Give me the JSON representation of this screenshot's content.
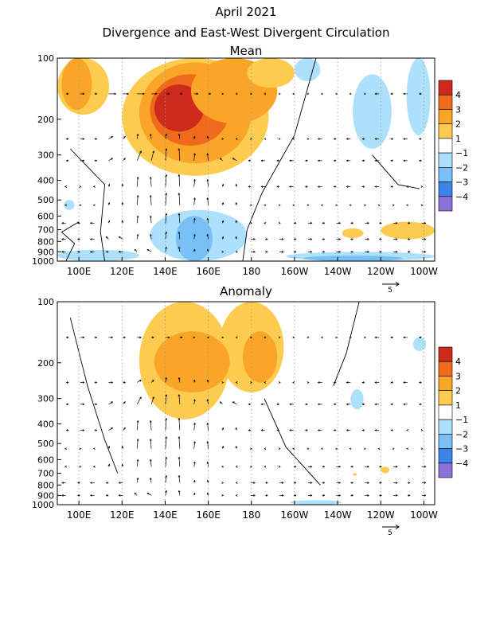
{
  "figure": {
    "title_line1": "April 2021",
    "title_line2": "Divergence and East-West Divergent Circulation"
  },
  "colors": {
    "frame": "#000000",
    "grid": "#9a9a9a",
    "contour": "#000000",
    "arrow": "#000000"
  },
  "chart_data": [
    {
      "type": "heatmap",
      "title": "Mean",
      "x_tick_labels": [
        "100E",
        "120E",
        "140E",
        "160E",
        "180",
        "160W",
        "140W",
        "120W",
        "100W"
      ],
      "x_tick_values_deg_east": [
        100,
        120,
        140,
        160,
        180,
        200,
        220,
        240,
        260
      ],
      "xlim_deg_east": [
        90,
        265
      ],
      "y_tick_labels": [
        "100",
        "200",
        "300",
        "400",
        "500",
        "600",
        "700",
        "800",
        "900",
        "1000"
      ],
      "y_tick_values_hPa": [
        100,
        200,
        300,
        400,
        500,
        600,
        700,
        800,
        900,
        1000
      ],
      "ylim_hPa": [
        100,
        1000
      ],
      "y_scale": "log (pressure)",
      "grid": "dotted vertical lines",
      "color_levels": [
        "4",
        "3",
        "2",
        "1",
        "-1",
        "-2",
        "-3",
        "-4"
      ],
      "color_scale": [
        "#cc2a1a",
        "#ef6a1a",
        "#f9a527",
        "#fdcb4f",
        "#ffffff",
        "#ade0fb",
        "#78c0f6",
        "#3c84e8",
        "#2456d6",
        "#8a72d8"
      ],
      "regions": [
        {
          "x": [
            90,
            114
          ],
          "p": [
            100,
            190
          ],
          "level": 2
        },
        {
          "x": [
            120,
            188
          ],
          "p": [
            100,
            380
          ],
          "level": 2
        },
        {
          "x": [
            128,
            180
          ],
          "p": [
            105,
            330
          ],
          "level": 3
        },
        {
          "x": [
            133,
            170
          ],
          "p": [
            120,
            270
          ],
          "level": 4
        },
        {
          "x": [
            135,
            158
          ],
          "p": [
            135,
            230
          ],
          "level": 5
        },
        {
          "x": [
            152,
            192
          ],
          "p": [
            100,
            210
          ],
          "level": 3
        },
        {
          "x": [
            178,
            200
          ],
          "p": [
            100,
            140
          ],
          "level": 2
        },
        {
          "x": [
            92,
            106
          ],
          "p": [
            100,
            180
          ],
          "level": 3
        },
        {
          "x": [
            240,
            265
          ],
          "p": [
            640,
            780
          ],
          "level": 2
        },
        {
          "x": [
            222,
            232
          ],
          "p": [
            690,
            770
          ],
          "level": 2
        },
        {
          "x": [
            227,
            245
          ],
          "p": [
            120,
            280
          ],
          "level": -1
        },
        {
          "x": [
            252,
            263
          ],
          "p": [
            100,
            240
          ],
          "level": -1
        },
        {
          "x": [
            200,
            212
          ],
          "p": [
            100,
            130
          ],
          "level": -1
        },
        {
          "x": [
            93,
            98
          ],
          "p": [
            500,
            560
          ],
          "level": -1
        },
        {
          "x": [
            133,
            178
          ],
          "p": [
            560,
            1000
          ],
          "level": -1
        },
        {
          "x": [
            145,
            162
          ],
          "p": [
            600,
            1000
          ],
          "level": -2
        },
        {
          "x": [
            90,
            128
          ],
          "p": [
            880,
            1000
          ],
          "level": -1
        },
        {
          "x": [
            196,
            265
          ],
          "p": [
            900,
            1000
          ],
          "level": -1
        },
        {
          "x": [
            204,
            250
          ],
          "p": [
            940,
            1000
          ],
          "level": -2
        }
      ],
      "contours": [
        [
          [
            210,
            100
          ],
          [
            200,
            240
          ],
          [
            185,
            460
          ],
          [
            178,
            700
          ],
          [
            176,
            1000
          ]
        ],
        [
          [
            96,
            280
          ],
          [
            112,
            420
          ],
          [
            110,
            720
          ],
          [
            112,
            1000
          ]
        ],
        [
          [
            236,
            300
          ],
          [
            248,
            420
          ],
          [
            258,
            440
          ]
        ],
        [
          [
            100,
            640
          ],
          [
            92,
            720
          ],
          [
            98,
            820
          ],
          [
            94,
            1000
          ]
        ]
      ],
      "arrow_scale": "5",
      "arrows_u": [
        [
          1,
          2,
          2,
          1,
          1,
          0,
          0,
          0,
          0,
          0,
          -1,
          -1
        ],
        [
          1,
          1,
          0,
          0,
          0,
          0,
          0,
          0,
          -1,
          -1,
          -1,
          -1
        ],
        [
          1,
          1,
          1,
          0,
          0,
          -1,
          -1,
          -1,
          -1,
          -1,
          -1,
          -1
        ],
        [
          0,
          0,
          0,
          0,
          0,
          0,
          -1,
          -1,
          -1,
          -1,
          -1,
          0
        ],
        [
          0,
          0,
          0,
          0,
          0,
          0,
          0,
          0,
          0,
          0,
          0,
          0
        ],
        [
          -1,
          0,
          0,
          0,
          0,
          0,
          0,
          1,
          1,
          1,
          1,
          1
        ],
        [
          -1,
          -1,
          0,
          0,
          0,
          0,
          1,
          1,
          1,
          1,
          1,
          1
        ],
        [
          -1,
          -1,
          -1,
          0,
          0,
          0,
          1,
          1,
          1,
          1,
          1,
          1
        ]
      ],
      "arrows_w": [
        [
          0,
          0,
          0,
          0,
          0,
          0,
          0,
          0,
          0,
          0,
          0,
          0
        ],
        [
          0,
          1,
          2,
          2,
          1,
          0,
          0,
          0,
          0,
          0,
          0,
          0
        ],
        [
          0,
          1,
          4,
          5,
          3,
          1,
          0,
          0,
          0,
          0,
          0,
          0
        ],
        [
          0,
          1,
          4,
          5,
          3,
          1,
          0,
          0,
          0,
          0,
          0,
          0
        ],
        [
          0,
          1,
          4,
          5,
          3,
          1,
          0,
          0,
          0,
          0,
          0,
          0
        ],
        [
          0,
          1,
          3,
          4,
          2,
          1,
          0,
          0,
          0,
          0,
          0,
          0
        ],
        [
          0,
          1,
          2,
          3,
          2,
          1,
          0,
          0,
          0,
          0,
          0,
          0
        ],
        [
          0,
          0,
          1,
          2,
          1,
          0,
          0,
          0,
          0,
          0,
          0,
          0
        ]
      ]
    },
    {
      "type": "heatmap",
      "title": "Anomaly",
      "x_tick_labels": [
        "100E",
        "120E",
        "140E",
        "160E",
        "180",
        "160W",
        "140W",
        "120W",
        "100W"
      ],
      "x_tick_values_deg_east": [
        100,
        120,
        140,
        160,
        180,
        200,
        220,
        240,
        260
      ],
      "xlim_deg_east": [
        90,
        265
      ],
      "y_tick_labels": [
        "100",
        "200",
        "300",
        "400",
        "500",
        "600",
        "700",
        "800",
        "900",
        "1000"
      ],
      "y_tick_values_hPa": [
        100,
        200,
        300,
        400,
        500,
        600,
        700,
        800,
        900,
        1000
      ],
      "ylim_hPa": [
        100,
        1000
      ],
      "y_scale": "log (pressure)",
      "grid": "dotted vertical lines",
      "color_levels": [
        "4",
        "3",
        "2",
        "1",
        "-1",
        "-2",
        "-3",
        "-4"
      ],
      "color_scale": [
        "#cc2a1a",
        "#ef6a1a",
        "#f9a527",
        "#fdcb4f",
        "#ffffff",
        "#ade0fb",
        "#78c0f6",
        "#3c84e8",
        "#2456d6",
        "#8a72d8"
      ],
      "regions": [
        {
          "x": [
            128,
            170
          ],
          "p": [
            100,
            380
          ],
          "level": 2
        },
        {
          "x": [
            165,
            195
          ],
          "p": [
            100,
            280
          ],
          "level": 2
        },
        {
          "x": [
            135,
            170
          ],
          "p": [
            140,
            280
          ],
          "level": 3
        },
        {
          "x": [
            176,
            192
          ],
          "p": [
            140,
            250
          ],
          "level": 3
        },
        {
          "x": [
            226,
            232
          ],
          "p": [
            270,
            340
          ],
          "level": -1
        },
        {
          "x": [
            255,
            261
          ],
          "p": [
            150,
            175
          ],
          "level": -1
        },
        {
          "x": [
            240,
            244
          ],
          "p": [
            650,
            700
          ],
          "level": 2
        },
        {
          "x": [
            227,
            229
          ],
          "p": [
            700,
            720
          ],
          "level": 2
        },
        {
          "x": [
            198,
            222
          ],
          "p": [
            950,
            1000
          ],
          "level": -1
        }
      ],
      "contours": [
        [
          [
            230,
            100
          ],
          [
            224,
            180
          ],
          [
            218,
            260
          ]
        ],
        [
          [
            96,
            120
          ],
          [
            104,
            260
          ],
          [
            112,
            480
          ],
          [
            118,
            700
          ]
        ],
        [
          [
            186,
            300
          ],
          [
            196,
            520
          ],
          [
            212,
            800
          ]
        ]
      ],
      "arrow_scale": "5",
      "arrows_u": [
        [
          1,
          1,
          1,
          1,
          0,
          0,
          0,
          0,
          0,
          0,
          -1,
          -1
        ],
        [
          1,
          1,
          1,
          0,
          0,
          0,
          0,
          0,
          -1,
          -1,
          -1,
          -1
        ],
        [
          1,
          1,
          1,
          0,
          0,
          -1,
          -1,
          -1,
          -1,
          -1,
          -1,
          -1
        ],
        [
          1,
          1,
          0,
          0,
          0,
          0,
          -1,
          -1,
          -1,
          -1,
          -1,
          0
        ],
        [
          0,
          0,
          0,
          0,
          0,
          0,
          0,
          0,
          0,
          0,
          0,
          0
        ],
        [
          0,
          0,
          0,
          0,
          0,
          0,
          0,
          1,
          1,
          1,
          1,
          1
        ],
        [
          -1,
          -1,
          0,
          0,
          0,
          0,
          1,
          1,
          1,
          1,
          1,
          1
        ],
        [
          -1,
          -1,
          -1,
          0,
          0,
          0,
          1,
          1,
          1,
          1,
          1,
          1
        ]
      ],
      "arrows_w": [
        [
          0,
          0,
          0,
          0,
          0,
          0,
          0,
          0,
          0,
          0,
          0,
          0
        ],
        [
          0,
          0,
          1,
          2,
          1,
          0,
          0,
          0,
          0,
          0,
          0,
          0
        ],
        [
          0,
          1,
          3,
          4,
          2,
          1,
          0,
          0,
          0,
          0,
          0,
          0
        ],
        [
          0,
          1,
          4,
          5,
          3,
          1,
          0,
          0,
          0,
          0,
          0,
          0
        ],
        [
          0,
          1,
          4,
          5,
          3,
          1,
          0,
          0,
          0,
          0,
          0,
          0
        ],
        [
          0,
          1,
          3,
          4,
          2,
          0,
          0,
          0,
          0,
          0,
          0,
          0
        ],
        [
          0,
          0,
          2,
          3,
          1,
          0,
          0,
          0,
          0,
          0,
          0,
          0
        ],
        [
          0,
          0,
          1,
          2,
          1,
          0,
          0,
          0,
          0,
          0,
          0,
          0
        ]
      ]
    }
  ]
}
